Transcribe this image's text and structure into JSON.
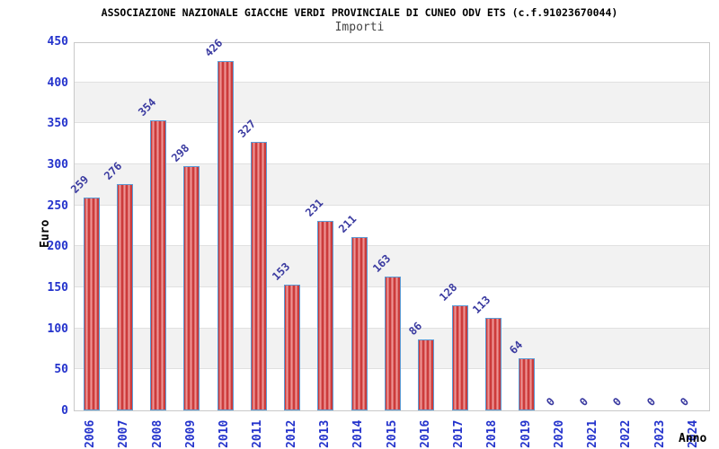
{
  "chart_data": {
    "type": "bar",
    "title": "ASSOCIAZIONE NAZIONALE GIACCHE VERDI PROVINCIALE DI CUNEO ODV ETS (c.f.91023670044)",
    "subtitle": "Importi",
    "xlabel": "Anno",
    "ylabel": "Euro",
    "categories": [
      "2006",
      "2007",
      "2008",
      "2009",
      "2010",
      "2011",
      "2012",
      "2013",
      "2014",
      "2015",
      "2016",
      "2017",
      "2018",
      "2019",
      "2020",
      "2021",
      "2022",
      "2023",
      "2024"
    ],
    "values": [
      259,
      276,
      354,
      298,
      426,
      327,
      153,
      231,
      211,
      163,
      86,
      128,
      113,
      64,
      0,
      0,
      0,
      0,
      0
    ],
    "ylim": [
      0,
      450
    ],
    "yticks": [
      0,
      50,
      100,
      150,
      200,
      250,
      300,
      350,
      400,
      450
    ],
    "grid": true,
    "band_step": 50,
    "legend_position": "none",
    "colors": {
      "bar_dark": "#c32222",
      "bar_light": "#f2a0a0",
      "bar_border": "#5b9bd5",
      "value_label": "#3a3aa0",
      "tick_label": "#2433cc",
      "band": "#f2f2f2",
      "gridline": "#e0e0e0",
      "axis_text": "#000000",
      "subtitle_text": "#444444"
    }
  }
}
